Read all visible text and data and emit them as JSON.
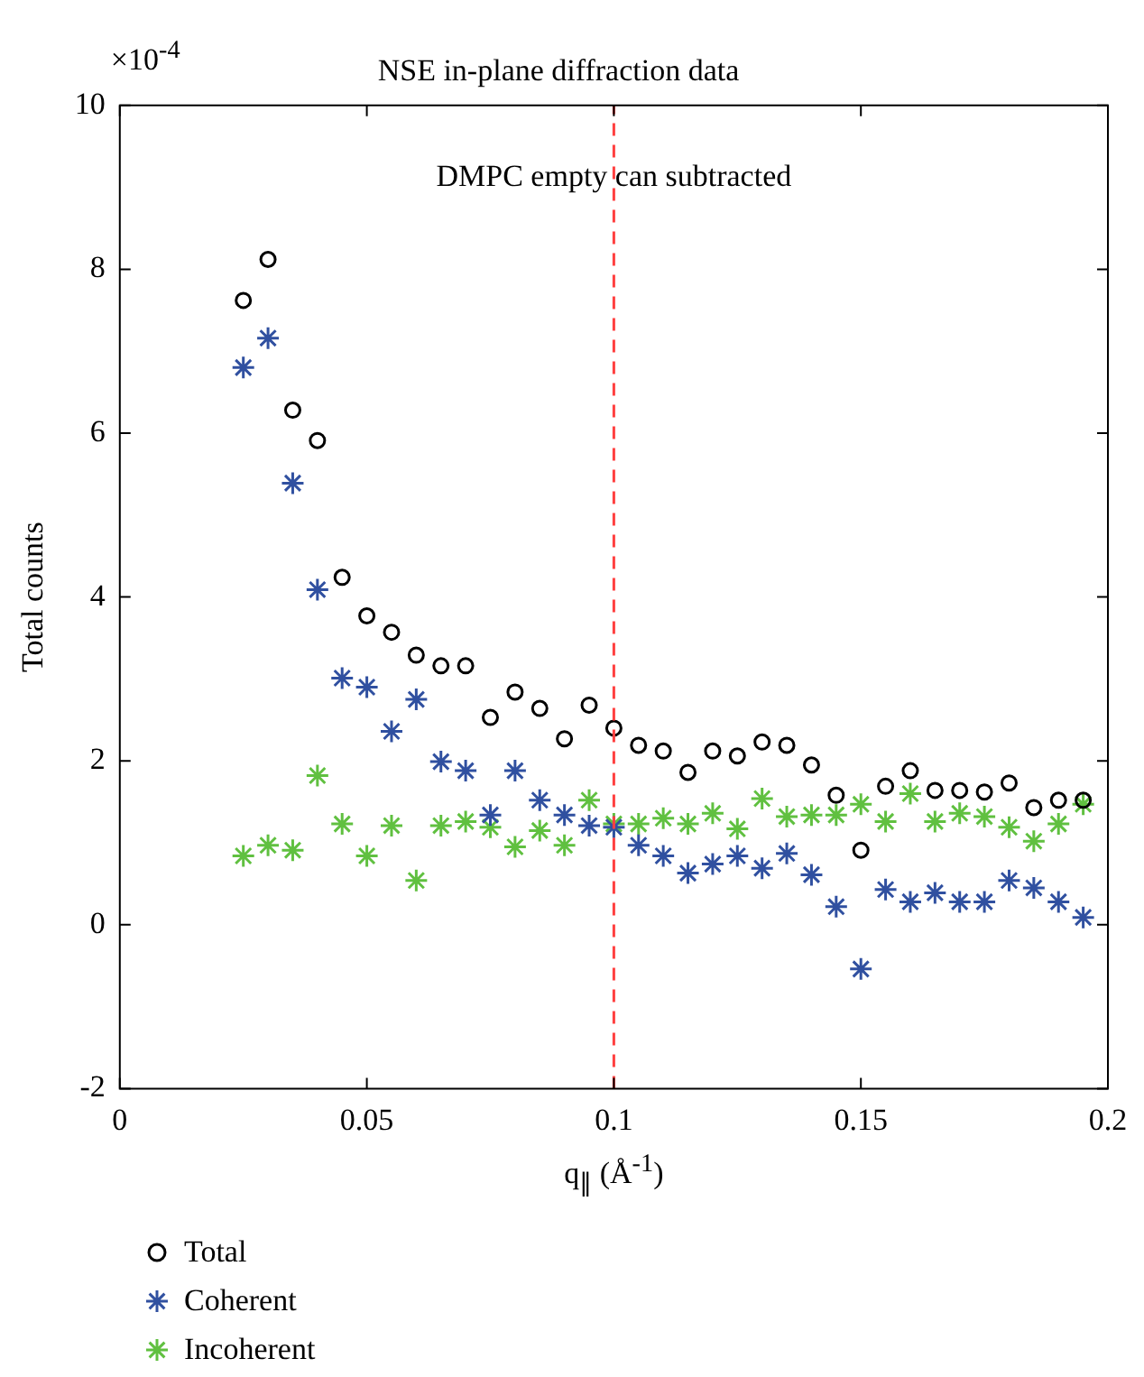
{
  "chart_data": {
    "type": "scatter",
    "title": "NSE in-plane diffraction data",
    "xlabel": "q$_{∥}$ (Å$^{-1}$)",
    "ylabel": "Total counts",
    "annotations": [
      "×10$^{-4}$",
      "DMPC empty can subtracted"
    ],
    "x": [
      0.025,
      0.03,
      0.035,
      0.04,
      0.045,
      0.05,
      0.055,
      0.06,
      0.065,
      0.07,
      0.075,
      0.08,
      0.085,
      0.09,
      0.095,
      0.1,
      0.105,
      0.11,
      0.115,
      0.12,
      0.125,
      0.13,
      0.135,
      0.14,
      0.145,
      0.15,
      0.155,
      0.16,
      0.165,
      0.17,
      0.175,
      0.18,
      0.185,
      0.19,
      0.195
    ],
    "series": [
      {
        "name": "Total",
        "color": "#000000",
        "marker": "circle",
        "values": [
          7.62,
          8.12,
          6.28,
          5.91,
          4.24,
          3.77,
          3.57,
          3.29,
          3.16,
          3.16,
          2.53,
          2.84,
          2.64,
          2.27,
          2.68,
          2.4,
          2.19,
          2.12,
          1.86,
          2.12,
          2.06,
          2.23,
          2.19,
          1.95,
          1.58,
          0.91,
          1.69,
          1.88,
          1.64,
          1.64,
          1.62,
          1.73,
          1.43,
          1.52,
          1.52
        ]
      },
      {
        "name": "Coherent",
        "color": "#3050a0",
        "marker": "cross",
        "values": [
          6.8,
          7.16,
          5.39,
          4.09,
          3.01,
          2.9,
          2.36,
          2.75,
          1.99,
          1.88,
          1.34,
          1.88,
          1.52,
          1.34,
          1.21,
          1.19,
          0.97,
          0.84,
          0.63,
          0.74,
          0.84,
          0.69,
          0.87,
          0.61,
          0.22,
          -0.54,
          0.43,
          0.28,
          0.39,
          0.28,
          0.28,
          0.54,
          0.45,
          0.28,
          0.09
        ]
      },
      {
        "name": "Incoherent",
        "color": "#60c040",
        "marker": "cross",
        "values": [
          0.84,
          0.97,
          0.91,
          1.82,
          1.23,
          0.84,
          1.21,
          0.54,
          1.21,
          1.26,
          1.19,
          0.95,
          1.15,
          0.97,
          1.52,
          1.23,
          1.23,
          1.3,
          1.23,
          1.36,
          1.17,
          1.54,
          1.32,
          1.34,
          1.34,
          1.47,
          1.26,
          1.6,
          1.26,
          1.36,
          1.32,
          1.19,
          1.02,
          1.23,
          1.47
        ]
      }
    ],
    "ref_lines": [
      {
        "axis": "x",
        "value": 0.1,
        "color": "#ff4040",
        "line_style": "dashed"
      }
    ],
    "xlim": [
      0,
      0.2
    ],
    "xticks": [
      0,
      0.05,
      0.1,
      0.15,
      0.2
    ],
    "ylim": [
      -2,
      10
    ],
    "yticks": [
      -2,
      0,
      2,
      4,
      6,
      8,
      10
    ],
    "grid": false,
    "legend": "bottom left"
  }
}
